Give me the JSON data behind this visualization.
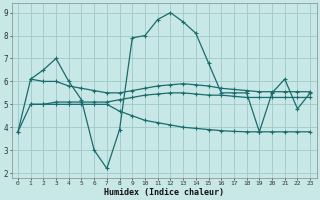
{
  "bg_color": "#c8e8e8",
  "grid_color": "#a0c8c8",
  "line_color": "#1a6b6b",
  "xlabel": "Humidex (Indice chaleur)",
  "ylim": [
    1.8,
    9.4
  ],
  "xlim": [
    -0.5,
    23.5
  ],
  "yticks": [
    2,
    3,
    4,
    5,
    6,
    7,
    8,
    9
  ],
  "xticks": [
    0,
    1,
    2,
    3,
    4,
    5,
    6,
    7,
    8,
    9,
    10,
    11,
    12,
    13,
    14,
    15,
    16,
    17,
    18,
    19,
    20,
    21,
    22,
    23
  ],
  "line1_x": [
    0,
    1,
    2,
    3,
    4,
    5,
    6,
    7,
    8,
    9,
    10,
    11,
    12,
    13,
    14,
    15,
    16,
    17,
    18,
    19,
    20,
    21,
    22,
    23
  ],
  "line1_y": [
    3.8,
    6.1,
    6.5,
    7.0,
    6.0,
    5.2,
    3.0,
    2.2,
    3.9,
    7.9,
    8.0,
    8.7,
    9.0,
    8.6,
    8.1,
    6.8,
    5.5,
    5.5,
    5.5,
    3.8,
    5.5,
    6.1,
    4.8,
    5.5
  ],
  "line2_x": [
    1,
    2,
    3,
    4,
    5,
    6,
    7,
    8,
    9,
    10,
    11,
    12,
    13,
    14,
    15,
    16,
    17,
    18,
    19,
    20,
    21,
    22,
    23
  ],
  "line2_y": [
    6.1,
    6.0,
    6.0,
    5.8,
    5.7,
    5.6,
    5.5,
    5.5,
    5.6,
    5.7,
    5.8,
    5.85,
    5.9,
    5.85,
    5.8,
    5.7,
    5.65,
    5.6,
    5.55,
    5.55,
    5.55,
    5.55,
    5.55
  ],
  "line3_x": [
    0,
    1,
    2,
    3,
    4,
    5,
    6,
    7,
    8,
    9,
    10,
    11,
    12,
    13,
    14,
    15,
    16,
    17,
    18,
    19,
    20,
    21,
    22,
    23
  ],
  "line3_y": [
    3.8,
    5.0,
    5.0,
    5.1,
    5.1,
    5.1,
    5.1,
    5.1,
    5.2,
    5.3,
    5.4,
    5.45,
    5.5,
    5.5,
    5.45,
    5.4,
    5.4,
    5.35,
    5.3,
    5.3,
    5.3,
    5.3,
    5.3,
    5.3
  ],
  "line4_x": [
    1,
    2,
    3,
    4,
    5,
    6,
    7,
    8,
    9,
    10,
    11,
    12,
    13,
    14,
    15,
    16,
    17,
    18,
    19,
    20,
    21,
    22,
    23
  ],
  "line4_y": [
    5.0,
    5.0,
    5.0,
    5.0,
    5.0,
    5.0,
    5.0,
    4.7,
    4.5,
    4.3,
    4.2,
    4.1,
    4.0,
    3.95,
    3.9,
    3.85,
    3.82,
    3.8,
    3.8,
    3.8,
    3.8,
    3.8,
    3.8
  ]
}
